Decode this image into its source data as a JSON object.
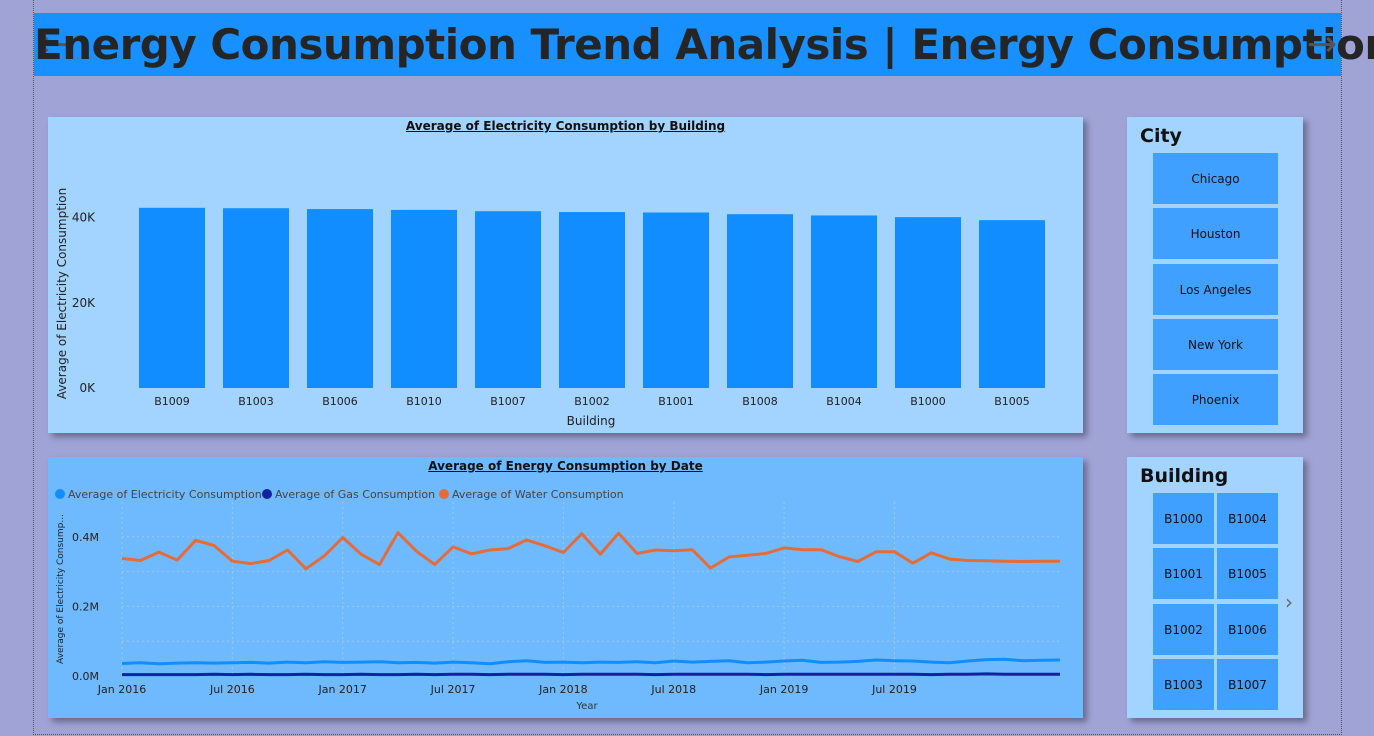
{
  "header": {
    "title": "Energy Consumption Trend Analysis | Energy Consumption",
    "left_arrow_icon": "arrow-left-icon",
    "right_arrow_icon": "arrow-right-icon"
  },
  "colors": {
    "header_bg": "#1890ff",
    "bar": "#118dff",
    "electricity": "#118dff",
    "gas": "#12239e",
    "water": "#e66c37",
    "slicer_button": "#40a0ff"
  },
  "city_slicer": {
    "title": "City",
    "options": [
      "Chicago",
      "Houston",
      "Los Angeles",
      "New York",
      "Phoenix"
    ]
  },
  "building_slicer": {
    "title": "Building",
    "options": [
      "B1000",
      "B1004",
      "B1001",
      "B1005",
      "B1002",
      "B1006",
      "B1003",
      "B1007"
    ],
    "next_icon": "chevron-right-icon"
  },
  "chart_data": [
    {
      "type": "bar",
      "title": "Average of Electricity Consumption by Building",
      "xlabel": "Building",
      "ylabel": "Average of Electricity Consumption",
      "categories": [
        "B1009",
        "B1003",
        "B1006",
        "B1010",
        "B1007",
        "B1002",
        "B1001",
        "B1008",
        "B1004",
        "B1000",
        "B1005"
      ],
      "values": [
        42300,
        42200,
        42000,
        41800,
        41500,
        41300,
        41200,
        40800,
        40500,
        40100,
        39400
      ],
      "yticks": [
        "0K",
        "20K",
        "40K"
      ],
      "ylim": [
        0,
        50000
      ],
      "grid": false
    },
    {
      "type": "line",
      "title": "Average of Energy Consumption by Date",
      "xlabel": "Year",
      "ylabel": "Average of Electricity Consump...",
      "xticks": [
        "Jan 2016",
        "Jul 2016",
        "Jan 2017",
        "Jul 2017",
        "Jan 2018",
        "Jul 2018",
        "Jan 2019",
        "Jul 2019"
      ],
      "yticks": [
        "0.0M",
        "0.2M",
        "0.4M"
      ],
      "ylim": [
        0,
        0.5
      ],
      "grid": true,
      "legend_position": "top-left",
      "series": [
        {
          "name": "Average of Electricity Consumption",
          "values": [
            0.036,
            0.038,
            0.035,
            0.037,
            0.038,
            0.037,
            0.038,
            0.039,
            0.037,
            0.04,
            0.038,
            0.041,
            0.039,
            0.04,
            0.041,
            0.038,
            0.039,
            0.037,
            0.04,
            0.038,
            0.035,
            0.041,
            0.044,
            0.039,
            0.04,
            0.038,
            0.04,
            0.039,
            0.041,
            0.038,
            0.043,
            0.04,
            0.042,
            0.044,
            0.038,
            0.04,
            0.043,
            0.045,
            0.039,
            0.04,
            0.042,
            0.046,
            0.044,
            0.043,
            0.04,
            0.038,
            0.043,
            0.047,
            0.048,
            0.044,
            0.045,
            0.046
          ]
        },
        {
          "name": "Average of Gas Consumption",
          "values": [
            0.004,
            0.004,
            0.004,
            0.004,
            0.004,
            0.005,
            0.004,
            0.005,
            0.004,
            0.004,
            0.005,
            0.004,
            0.004,
            0.005,
            0.004,
            0.004,
            0.005,
            0.004,
            0.005,
            0.005,
            0.004,
            0.005,
            0.005,
            0.005,
            0.004,
            0.005,
            0.005,
            0.005,
            0.005,
            0.004,
            0.005,
            0.005,
            0.005,
            0.005,
            0.005,
            0.004,
            0.005,
            0.005,
            0.005,
            0.005,
            0.005,
            0.005,
            0.005,
            0.005,
            0.004,
            0.005,
            0.005,
            0.006,
            0.005,
            0.005,
            0.005,
            0.005
          ]
        },
        {
          "name": "Average of Water Consumption",
          "values": [
            0.338,
            0.332,
            0.356,
            0.333,
            0.39,
            0.375,
            0.33,
            0.323,
            0.332,
            0.362,
            0.308,
            0.345,
            0.398,
            0.35,
            0.32,
            0.412,
            0.359,
            0.32,
            0.371,
            0.351,
            0.362,
            0.366,
            0.391,
            0.374,
            0.355,
            0.409,
            0.35,
            0.41,
            0.352,
            0.362,
            0.36,
            0.363,
            0.31,
            0.342,
            0.347,
            0.352,
            0.368,
            0.363,
            0.363,
            0.343,
            0.329,
            0.357,
            0.357,
            0.324,
            0.354,
            0.336,
            0.332,
            0.331,
            0.33,
            0.329,
            0.33,
            0.33
          ]
        }
      ]
    }
  ]
}
